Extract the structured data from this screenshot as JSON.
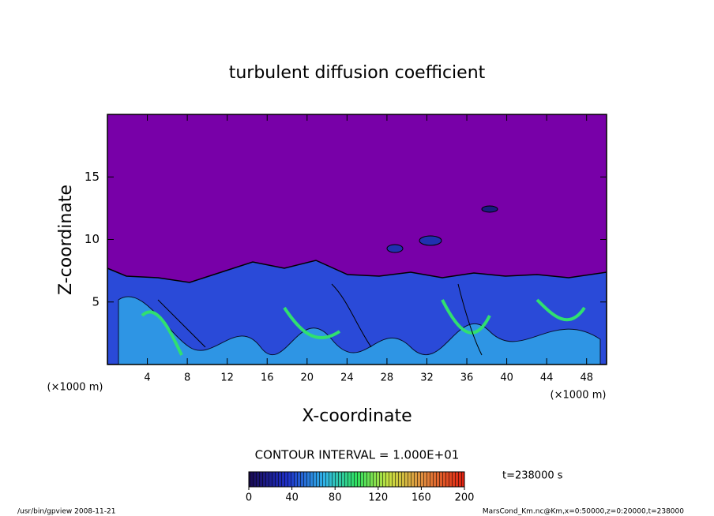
{
  "chart_data": {
    "type": "contour",
    "title": "turbulent diffusion coefficient",
    "x_label": "X-coordinate",
    "y_label": "Z-coordinate",
    "unit_label": "(×1000 m)",
    "xlim": [
      0,
      50
    ],
    "xticks": [
      4,
      8,
      12,
      16,
      20,
      24,
      28,
      32,
      36,
      40,
      44,
      48
    ],
    "ylim": [
      0,
      20
    ],
    "yticks": [
      5,
      10,
      15
    ],
    "colorbar": {
      "lim": [
        0,
        200
      ],
      "ticks": [
        0,
        40,
        80,
        120,
        160,
        200
      ]
    },
    "contour_interval": "CONTOUR INTERVAL = 1.000E+01",
    "time_label": "t=238000 s",
    "footer_left": "/usr/bin/gpview  2008-11-21",
    "footer_right": "MarsCond_Km.nc@Km,x=0:50000,z=0:20000,t=238000"
  }
}
